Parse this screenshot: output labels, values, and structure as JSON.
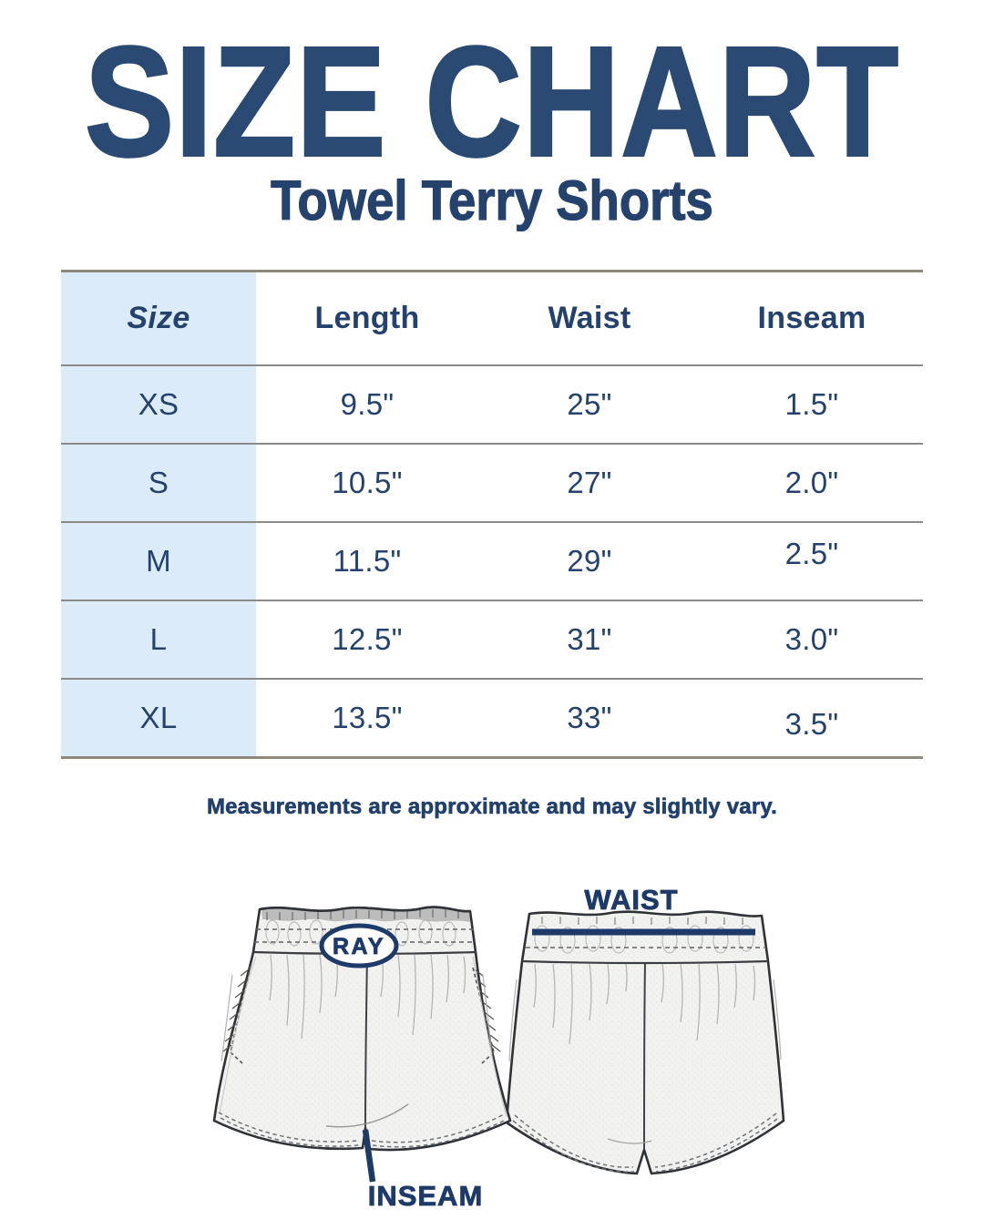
{
  "page": {
    "title": "SIZE CHART",
    "subtitle": "Towel Terry Shorts",
    "note": "Measurements are approximate and may slightly vary."
  },
  "size_table": {
    "columns": [
      "Size",
      "Length",
      "Waist",
      "Inseam"
    ],
    "rows": [
      [
        "XS",
        "9.5\"",
        "25\"",
        "1.5\""
      ],
      [
        "S",
        "10.5\"",
        "27\"",
        "2.0\""
      ],
      [
        "M",
        "11.5\"",
        "29\"",
        "2.5\""
      ],
      [
        "L",
        "12.5\"",
        "31\"",
        "3.0\""
      ],
      [
        "XL",
        "13.5\"",
        "33\"",
        "3.5\""
      ]
    ]
  },
  "diagram": {
    "badge_label": "RAY",
    "waist_label": "WAIST",
    "inseam_label": "INSEAM"
  },
  "colors": {
    "title_navy": "#2a4a74",
    "text_navy": "#24426c",
    "accent_navy": "#1d3a68",
    "size_column_blue": "#dcebfa",
    "table_line_gray": "#8a8a8a",
    "table_edge_tan": "#8f897c",
    "fabric_gray": "#f2f2f0"
  }
}
